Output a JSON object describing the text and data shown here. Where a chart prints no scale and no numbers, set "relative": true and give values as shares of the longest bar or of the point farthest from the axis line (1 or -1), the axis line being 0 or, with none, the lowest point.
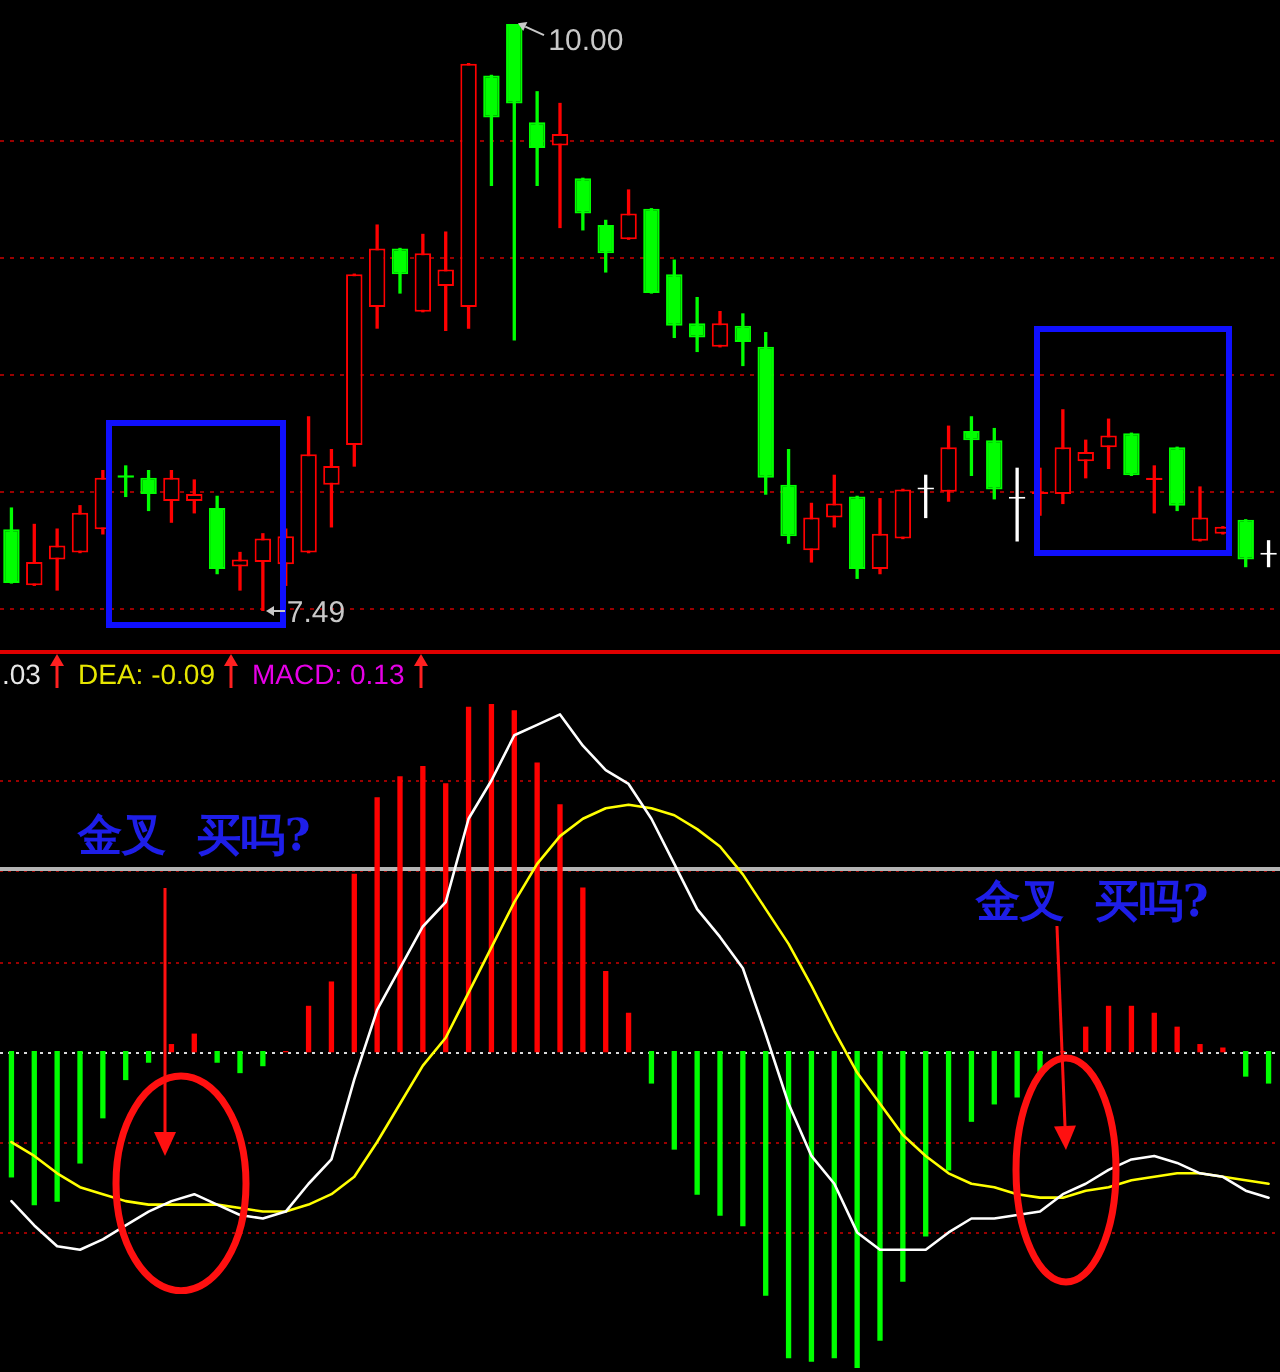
{
  "chart_data": [
    {
      "type": "candlestick",
      "categories": [
        null,
        null,
        null,
        null,
        null,
        null,
        null,
        null,
        null,
        null,
        null,
        null,
        null,
        null,
        null,
        null,
        null,
        null,
        null,
        null,
        null,
        null,
        null,
        null,
        null,
        null,
        null,
        null,
        null,
        null,
        null,
        null,
        null,
        null,
        null,
        null,
        null,
        null,
        null,
        null,
        null,
        null,
        null,
        null,
        null,
        null,
        null,
        null,
        null,
        null,
        null,
        null,
        null,
        null,
        null,
        null
      ],
      "ohlc": [
        [
          7.84,
          7.93,
          7.61,
          7.61
        ],
        [
          7.6,
          7.86,
          7.6,
          7.7
        ],
        [
          7.71,
          7.84,
          7.58,
          7.77
        ],
        [
          7.74,
          7.94,
          7.74,
          7.91
        ],
        [
          7.84,
          8.09,
          7.82,
          8.06
        ],
        [
          8.07,
          8.11,
          7.98,
          8.06
        ],
        [
          8.06,
          8.09,
          7.92,
          7.99
        ],
        [
          7.96,
          8.09,
          7.87,
          8.06
        ],
        [
          7.96,
          8.05,
          7.91,
          7.99
        ],
        [
          7.93,
          7.98,
          7.65,
          7.67
        ],
        [
          7.68,
          7.74,
          7.58,
          7.71
        ],
        [
          7.7,
          7.82,
          7.49,
          7.8
        ],
        [
          7.69,
          7.84,
          7.6,
          7.81
        ],
        [
          7.74,
          8.32,
          7.74,
          8.16
        ],
        [
          8.03,
          8.18,
          7.85,
          8.11
        ],
        [
          8.2,
          8.93,
          8.11,
          8.93
        ],
        [
          8.79,
          9.14,
          8.7,
          9.04
        ],
        [
          9.04,
          9.04,
          8.85,
          8.93
        ],
        [
          8.77,
          9.1,
          8.77,
          9.02
        ],
        [
          8.88,
          9.11,
          8.69,
          8.95
        ],
        [
          8.79,
          9.83,
          8.7,
          9.83
        ],
        [
          9.78,
          9.78,
          9.31,
          9.6
        ],
        [
          10.0,
          10.0,
          8.65,
          9.66
        ],
        [
          9.58,
          9.71,
          9.31,
          9.47
        ],
        [
          9.48,
          9.66,
          9.13,
          9.53
        ],
        [
          9.34,
          9.34,
          9.12,
          9.19
        ],
        [
          9.14,
          9.16,
          8.94,
          9.02
        ],
        [
          9.08,
          9.29,
          9.08,
          9.19
        ],
        [
          9.21,
          9.21,
          8.85,
          8.85
        ],
        [
          8.93,
          8.99,
          8.66,
          8.71
        ],
        [
          8.72,
          8.83,
          8.6,
          8.66
        ],
        [
          8.62,
          8.77,
          8.62,
          8.72
        ],
        [
          8.71,
          8.76,
          8.54,
          8.64
        ],
        [
          8.62,
          8.68,
          7.99,
          8.06
        ],
        [
          8.03,
          8.18,
          7.78,
          7.81
        ],
        [
          7.75,
          7.95,
          7.7,
          7.89
        ],
        [
          7.89,
          8.07,
          7.85,
          7.95
        ],
        [
          7.98,
          7.98,
          7.63,
          7.67
        ],
        [
          7.67,
          7.97,
          7.65,
          7.82
        ],
        [
          7.8,
          8.01,
          7.8,
          8.01
        ],
        [
          8.01,
          8.07,
          7.89,
          8.01
        ],
        [
          8.0,
          8.28,
          7.96,
          8.19
        ],
        [
          8.26,
          8.32,
          8.07,
          8.22
        ],
        [
          8.22,
          8.27,
          7.97,
          8.01
        ],
        [
          7.97,
          8.1,
          7.79,
          7.97
        ],
        [
          7.99,
          8.1,
          7.9,
          8.0
        ],
        [
          7.99,
          8.35,
          7.95,
          8.19
        ],
        [
          8.13,
          8.22,
          8.06,
          8.17
        ],
        [
          8.19,
          8.31,
          8.1,
          8.24
        ],
        [
          8.25,
          8.25,
          8.07,
          8.07
        ],
        [
          8.05,
          8.11,
          7.91,
          8.06
        ],
        [
          8.19,
          8.19,
          7.92,
          7.94
        ],
        [
          7.79,
          8.02,
          7.79,
          7.89
        ],
        [
          7.82,
          7.85,
          7.82,
          7.85
        ],
        [
          7.88,
          7.88,
          7.68,
          7.71
        ],
        [
          7.73,
          7.79,
          7.68,
          7.73
        ]
      ],
      "colors": [
        "#00ff00",
        "#ff0000",
        "#ff0000",
        "#ff0000",
        "#ff0000",
        "#00ff00",
        "#00ff00",
        "#ff0000",
        "#ff0000",
        "#00ff00",
        "#ff0000",
        "#ff0000",
        "#ff0000",
        "#ff0000",
        "#ff0000",
        "#ff0000",
        "#ff0000",
        "#00ff00",
        "#ff0000",
        "#ff0000",
        "#ff0000",
        "#00ff00",
        "#00ff00",
        "#00ff00",
        "#ff0000",
        "#00ff00",
        "#00ff00",
        "#ff0000",
        "#00ff00",
        "#00ff00",
        "#00ff00",
        "#ff0000",
        "#00ff00",
        "#00ff00",
        "#00ff00",
        "#ff0000",
        "#ff0000",
        "#00ff00",
        "#ff0000",
        "#ff0000",
        "#ffffff",
        "#ff0000",
        "#00ff00",
        "#00ff00",
        "#ffffff",
        "#ff0000",
        "#ff0000",
        "#ff0000",
        "#ff0000",
        "#00ff00",
        "#ff0000",
        "#00ff00",
        "#ff0000",
        "#ff0000",
        "#00ff00",
        "#ffffff"
      ],
      "yticks": [
        {
          "value": 7.5,
          "label": null
        },
        {
          "value": 8.0,
          "label": null
        },
        {
          "value": 8.5,
          "label": null
        },
        {
          "value": 9.0,
          "label": null
        },
        {
          "value": 9.5,
          "label": null
        }
      ],
      "grid": "y",
      "tick_labels": false,
      "annotations": [
        "10.00",
        "7.49"
      ]
    },
    {
      "type": "bar",
      "relative": true,
      "tick_labels": false,
      "categories": [
        null,
        null,
        null,
        null,
        null,
        null,
        null,
        null,
        null,
        null,
        null,
        null,
        null,
        null,
        null,
        null,
        null,
        null,
        null,
        null,
        null,
        null,
        null,
        null,
        null,
        null,
        null,
        null,
        null,
        null,
        null,
        null,
        null,
        null,
        null,
        null,
        null,
        null,
        null,
        null,
        null,
        null,
        null,
        null,
        null,
        null,
        null,
        null,
        null,
        null,
        null,
        null,
        null,
        null,
        null,
        null
      ],
      "series": [
        {
          "type": "bar",
          "colors": [
            "#00ff00",
            "#00ff00",
            "#00ff00",
            "#00ff00",
            "#00ff00",
            "#00ff00",
            "#00ff00",
            "#ff0000",
            "#ff0000",
            "#00ff00",
            "#00ff00",
            "#00ff00",
            "#ff0000",
            "#ff0000",
            "#ff0000",
            "#ff0000",
            "#ff0000",
            "#ff0000",
            "#ff0000",
            "#ff0000",
            "#ff0000",
            "#ff0000",
            "#ff0000",
            "#ff0000",
            "#ff0000",
            "#ff0000",
            "#ff0000",
            "#ff0000",
            "#00ff00",
            "#00ff00",
            "#00ff00",
            "#00ff00",
            "#00ff00",
            "#00ff00",
            "#00ff00",
            "#00ff00",
            "#00ff00",
            "#00ff00",
            "#00ff00",
            "#00ff00",
            "#00ff00",
            "#00ff00",
            "#00ff00",
            "#00ff00",
            "#00ff00",
            "#00ff00",
            "#ff0000",
            "#ff0000",
            "#ff0000",
            "#ff0000",
            "#ff0000",
            "#ff0000",
            "#ff0000",
            "#ff0000",
            "#00ff00",
            "#00ff00"
          ],
          "values": [
            -0.36,
            -0.44,
            -0.43,
            -0.32,
            -0.19,
            -0.08,
            -0.03,
            0.02,
            0.05,
            -0.03,
            -0.06,
            -0.04,
            0,
            0.13,
            0.2,
            0.51,
            0.73,
            0.79,
            0.82,
            0.77,
            0.99,
            1,
            0.98,
            0.83,
            0.71,
            0.47,
            0.23,
            0.11,
            -0.09,
            -0.28,
            -0.41,
            -0.47,
            -0.5,
            -0.7,
            -0.88,
            -0.89,
            -0.88,
            -0.91,
            -0.83,
            -0.66,
            -0.53,
            -0.34,
            -0.2,
            -0.15,
            -0.13,
            -0.06,
            0,
            0.07,
            0.13,
            0.13,
            0.11,
            0.07,
            0.02,
            0.01,
            -0.07,
            -0.09
          ]
        },
        {
          "type": "line",
          "color": "#ffffff",
          "values": [
            -0.43,
            -0.5,
            -0.56,
            -0.57,
            -0.54,
            -0.5,
            -0.46,
            -0.43,
            -0.41,
            -0.44,
            -0.47,
            -0.48,
            -0.46,
            -0.38,
            -0.31,
            -0.08,
            0.12,
            0.24,
            0.36,
            0.43,
            0.67,
            0.78,
            0.91,
            0.94,
            0.97,
            0.88,
            0.81,
            0.77,
            0.67,
            0.54,
            0.41,
            0.33,
            0.24,
            0.05,
            -0.15,
            -0.3,
            -0.38,
            -0.52,
            -0.57,
            -0.57,
            -0.57,
            -0.52,
            -0.48,
            -0.48,
            -0.47,
            -0.46,
            -0.41,
            -0.38,
            -0.34,
            -0.31,
            -0.3,
            -0.32,
            -0.35,
            -0.36,
            -0.4,
            -0.42
          ]
        },
        {
          "type": "line",
          "color": "#ffff00",
          "values": [
            -0.26,
            -0.3,
            -0.35,
            -0.39,
            -0.41,
            -0.43,
            -0.44,
            -0.44,
            -0.44,
            -0.44,
            -0.45,
            -0.46,
            -0.46,
            -0.44,
            -0.41,
            -0.36,
            -0.26,
            -0.15,
            -0.04,
            0.04,
            0.17,
            0.3,
            0.43,
            0.54,
            0.62,
            0.67,
            0.7,
            0.71,
            0.7,
            0.68,
            0.64,
            0.59,
            0.51,
            0.41,
            0.31,
            0.19,
            0.06,
            -0.06,
            -0.15,
            -0.24,
            -0.3,
            -0.35,
            -0.38,
            -0.39,
            -0.41,
            -0.42,
            -0.42,
            -0.4,
            -0.39,
            -0.37,
            -0.36,
            -0.35,
            -0.35,
            -0.36,
            -0.37,
            -0.38
          ]
        }
      ],
      "ref_lines": [
        {
          "axis": "y",
          "value": 0.78,
          "color": "#9a0000",
          "line_style": "dotted"
        },
        {
          "axis": "y",
          "value": 0.52,
          "color": "#9a0000",
          "line_style": "dotted"
        },
        {
          "axis": "y",
          "value": 0.26,
          "color": "#9a0000",
          "line_style": "dotted"
        },
        {
          "axis": "y",
          "value": -0.26,
          "color": "#9a0000",
          "line_style": "dotted"
        },
        {
          "axis": "y",
          "value": -0.52,
          "color": "#9a0000",
          "line_style": "dotted"
        },
        {
          "axis": "y",
          "value": 0.53,
          "color": "#b4b4b4",
          "line_style": "solid"
        },
        {
          "axis": "y",
          "value": 0,
          "color": "#d8d8d8",
          "line_style": "dotted"
        }
      ],
      "annotations": [
        ".03",
        "DEA: -0.09",
        "MACD: 0.13",
        "金叉  买吗?",
        "金叉  买吗?"
      ]
    }
  ]
}
